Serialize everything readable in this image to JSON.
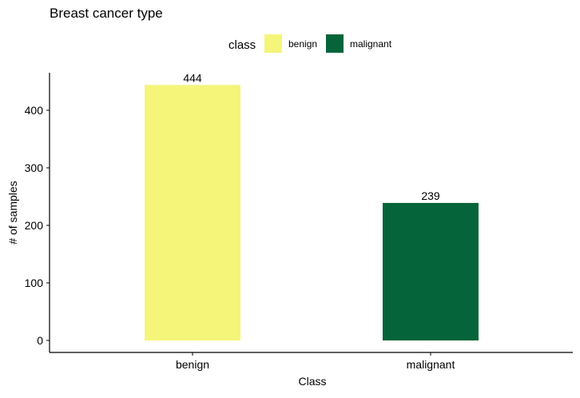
{
  "chart_data": {
    "type": "bar",
    "title": "Breast cancer type",
    "xlabel": "Class",
    "ylabel": "# of samples",
    "categories": [
      "benign",
      "malignant"
    ],
    "values": [
      444,
      239
    ],
    "data_labels": [
      "444",
      "239"
    ],
    "colors": [
      "#F5F57A",
      "#05643A"
    ],
    "ylim": [
      0,
      450
    ],
    "yticks": [
      0,
      100,
      200,
      300,
      400
    ],
    "grid": false,
    "legend": {
      "title": "class",
      "position": "top",
      "entries": [
        "benign",
        "malignant"
      ]
    }
  }
}
